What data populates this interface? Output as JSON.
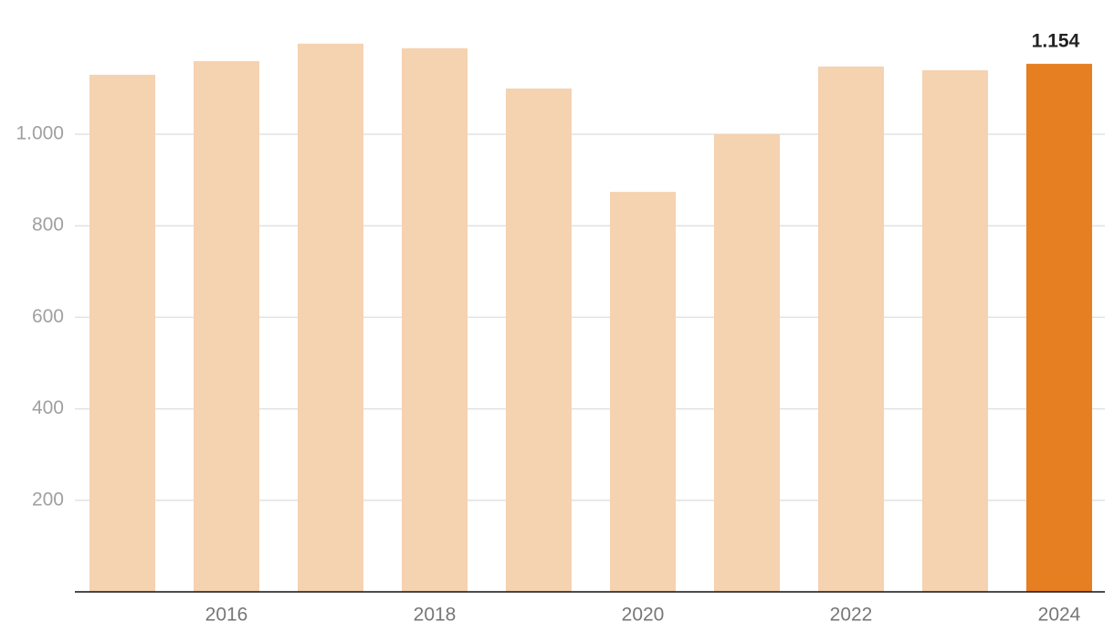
{
  "chart_data": {
    "type": "bar",
    "categories": [
      null,
      "2016",
      null,
      "2018",
      null,
      "2020",
      null,
      "2022",
      null,
      "2024"
    ],
    "values": [
      1130,
      1160,
      1198,
      1188,
      1100,
      874,
      1000,
      1148,
      1140,
      1154
    ],
    "value_labels": [
      null,
      null,
      null,
      null,
      null,
      null,
      null,
      null,
      null,
      "1.154"
    ],
    "colors": [
      "#f5d2b0",
      "#f5d2b0",
      "#f5d2b0",
      "#f5d2b0",
      "#f5d2b0",
      "#f5d2b0",
      "#f5d2b0",
      "#f5d2b0",
      "#f5d2b0",
      "#e67e22"
    ],
    "ylim": [
      0,
      1290
    ],
    "yticks": [
      200,
      400,
      600,
      800,
      {
        "value": 1000,
        "label": "1.000"
      }
    ],
    "grid": true
  }
}
